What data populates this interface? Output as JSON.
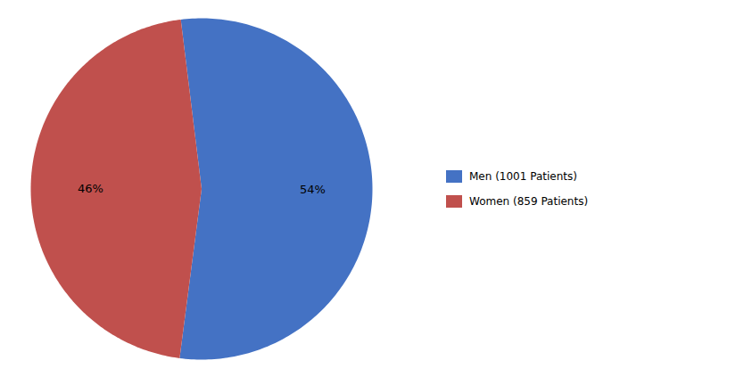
{
  "chart_data": {
    "type": "pie",
    "categories": [
      "Men (1001 Patients)",
      "Women (859 Patients)"
    ],
    "values": [
      54,
      46
    ],
    "value_labels": [
      "54%",
      "46%"
    ],
    "colors": [
      "#4472C4",
      "#C0504D"
    ],
    "data_labels": true,
    "legend": "right",
    "tick_labels": false
  }
}
